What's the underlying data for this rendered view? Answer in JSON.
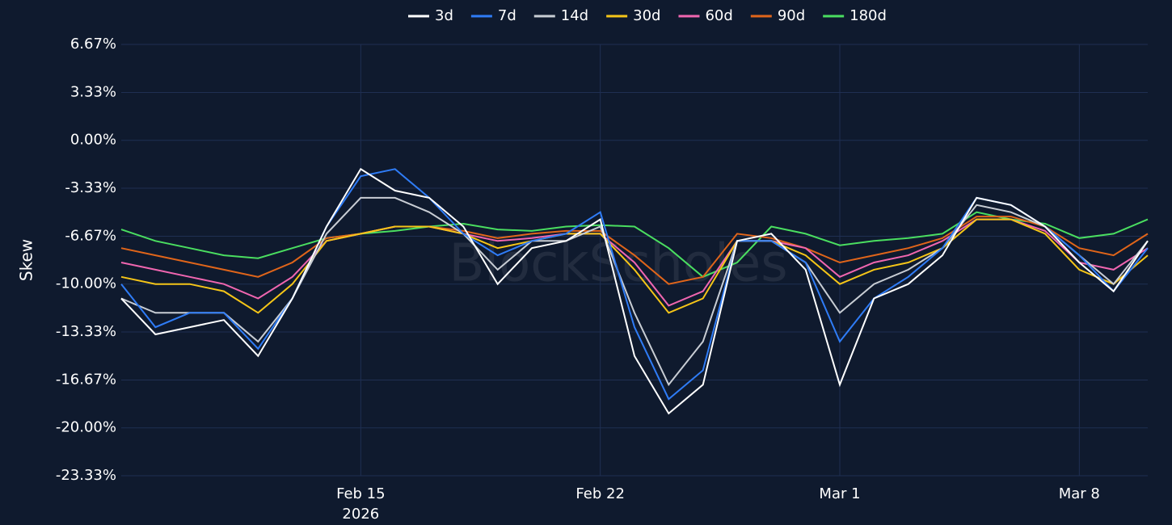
{
  "chart_data": {
    "type": "line",
    "y_label": "Skew",
    "watermark": "BlockScholes",
    "x": [
      "2026-02-08",
      "2026-02-09",
      "2026-02-10",
      "2026-02-11",
      "2026-02-12",
      "2026-02-13",
      "2026-02-14",
      "2026-02-15",
      "2026-02-16",
      "2026-02-17",
      "2026-02-18",
      "2026-02-19",
      "2026-02-20",
      "2026-02-21",
      "2026-02-22",
      "2026-02-23",
      "2026-02-24",
      "2026-02-25",
      "2026-02-26",
      "2026-02-27",
      "2026-02-28",
      "2026-03-01",
      "2026-03-02",
      "2026-03-03",
      "2026-03-04",
      "2026-03-05",
      "2026-03-06",
      "2026-03-07",
      "2026-03-08",
      "2026-03-09",
      "2026-03-10"
    ],
    "xlim": [
      "2026-02-08",
      "2026-03-10"
    ],
    "xticks": [
      {
        "value": "2026-02-15",
        "label": "Feb 15"
      },
      {
        "value": "2026-02-22",
        "label": "Feb 22"
      },
      {
        "value": "2026-03-01",
        "label": "Mar 1"
      },
      {
        "value": "2026-03-08",
        "label": "Mar 8"
      }
    ],
    "x_year_label": "2026",
    "ylim": [
      -23.33,
      6.67
    ],
    "yticks": [
      {
        "value": -23.33,
        "label": "-23.33%"
      },
      {
        "value": -20,
        "label": "-20.00%"
      },
      {
        "value": -16.67,
        "label": "-16.67%"
      },
      {
        "value": -13.33,
        "label": "-13.33%"
      },
      {
        "value": -10,
        "label": "-10.00%"
      },
      {
        "value": -6.67,
        "label": "-6.67%"
      },
      {
        "value": -3.33,
        "label": "-3.33%"
      },
      {
        "value": 0,
        "label": "0.00%"
      },
      {
        "value": 3.33,
        "label": "3.33%"
      },
      {
        "value": 6.67,
        "label": "6.67%"
      }
    ],
    "grid": true,
    "legend": "top",
    "series": [
      {
        "name": "3d",
        "color": "#ffffff",
        "values": [
          -11,
          -13.5,
          -13,
          -12.5,
          -15,
          -11,
          -6,
          -2,
          -3.5,
          -4,
          -6,
          -10,
          -7.5,
          -7,
          -5.5,
          -15,
          -19,
          -17,
          -7,
          -6.5,
          -9,
          -17,
          -11,
          -10,
          -8,
          -4,
          -4.5,
          -6,
          -8.5,
          -10.5,
          -7
        ]
      },
      {
        "name": "7d",
        "color": "#2f7cf6",
        "values": [
          -10,
          -13,
          -12,
          -12,
          -14.5,
          -11,
          -6,
          -2.5,
          -2,
          -4,
          -6.5,
          -8,
          -7,
          -6.5,
          -5,
          -13,
          -18,
          -16,
          -7,
          -7,
          -8.5,
          -14,
          -11,
          -9.5,
          -7.5,
          -4,
          -4.5,
          -6,
          -8,
          -10.5,
          -7.5
        ]
      },
      {
        "name": "14d",
        "color": "#c8cdd4",
        "values": [
          -11,
          -12,
          -12,
          -12,
          -14,
          -11,
          -6.5,
          -4,
          -4,
          -5,
          -6.5,
          -9,
          -7,
          -7,
          -6,
          -12,
          -17,
          -14,
          -7,
          -7,
          -8.5,
          -12,
          -10,
          -9,
          -7.5,
          -4.5,
          -5,
          -6,
          -8,
          -10,
          -7
        ]
      },
      {
        "name": "30d",
        "color": "#f5c518",
        "values": [
          -9.5,
          -10,
          -10,
          -10.5,
          -12,
          -10,
          -7,
          -6.5,
          -6,
          -6,
          -6.5,
          -7.5,
          -7,
          -6.5,
          -6.5,
          -9,
          -12,
          -11,
          -7,
          -7,
          -8,
          -10,
          -9,
          -8.5,
          -7.5,
          -5.5,
          -5.5,
          -6.5,
          -9,
          -10,
          -8
        ]
      },
      {
        "name": "60d",
        "color": "#f066b0",
        "values": [
          -8.5,
          -9,
          -9.5,
          -10,
          -11,
          -9.5,
          -7,
          -6.5,
          -6,
          -6,
          -6.5,
          -7,
          -6.8,
          -6.5,
          -6.5,
          -8.5,
          -11.5,
          -10.5,
          -7,
          -7,
          -7.5,
          -9.5,
          -8.5,
          -8,
          -7,
          -5.5,
          -5.5,
          -6.3,
          -8.5,
          -9,
          -7.5
        ]
      },
      {
        "name": "90d",
        "color": "#e0651a",
        "values": [
          -7.5,
          -8,
          -8.5,
          -9,
          -9.5,
          -8.5,
          -6.8,
          -6.5,
          -6,
          -6,
          -6.3,
          -6.8,
          -6.5,
          -6.3,
          -6.3,
          -8,
          -10,
          -9.5,
          -6.5,
          -6.8,
          -7.5,
          -8.5,
          -8,
          -7.5,
          -6.8,
          -5.3,
          -5.3,
          -6,
          -7.5,
          -8,
          -6.5
        ]
      },
      {
        "name": "180d",
        "color": "#4ade60",
        "values": [
          -6.2,
          -7,
          -7.5,
          -8,
          -8.2,
          -7.5,
          -6.8,
          -6.5,
          -6.3,
          -6,
          -5.8,
          -6.2,
          -6.3,
          -6,
          -5.9,
          -6,
          -7.5,
          -9.5,
          -8.5,
          -6,
          -6.5,
          -7.3,
          -7,
          -6.8,
          -6.5,
          -5,
          -5.5,
          -5.8,
          -6.8,
          -6.5,
          -5.5
        ]
      }
    ]
  }
}
